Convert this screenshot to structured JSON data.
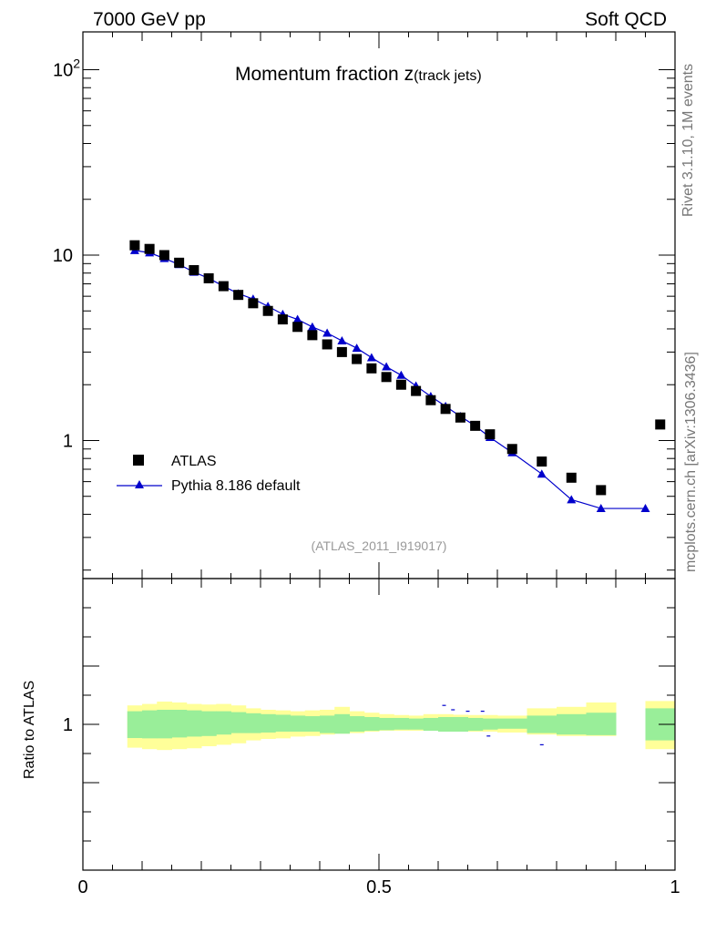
{
  "header": {
    "beam": "7000 GeV pp",
    "process": "Soft QCD"
  },
  "side_labels": {
    "rivet": "Rivet 3.1.10,  1M events",
    "source": "mcplots.cern.ch [arXiv:1306.3436]"
  },
  "chart_data": {
    "type": "scatter",
    "title_main": "Momentum fraction z",
    "title_sub": "(track jets)",
    "analysis_id": "(ATLAS_2011_I919017)",
    "xlim": [
      0,
      1
    ],
    "main_ylim": [
      0.18,
      160
    ],
    "main_yscale": "log",
    "x_tick_labels": [
      "0",
      "0.5",
      "1"
    ],
    "main_y_tick_labels": [
      {
        "value": 1,
        "label": "1"
      },
      {
        "value": 10,
        "label": "10"
      },
      {
        "value": 100,
        "label": "10",
        "sup": "2"
      }
    ],
    "ratio_ylabel": "Ratio to ATLAS",
    "ratio_ylim": [
      0.5,
      1.5
    ],
    "ratio_y_tick_labels": [
      {
        "value": 1,
        "label": "1"
      }
    ],
    "legend_position": "bottom-left",
    "series": [
      {
        "name": "ATLAS",
        "marker": "square",
        "color": "#000000",
        "x": [
          0.0875,
          0.1125,
          0.1375,
          0.1625,
          0.1875,
          0.2125,
          0.2375,
          0.2625,
          0.2875,
          0.3125,
          0.3375,
          0.3625,
          0.3875,
          0.4125,
          0.4375,
          0.4625,
          0.4875,
          0.5125,
          0.5375,
          0.5625,
          0.5875,
          0.6125,
          0.6375,
          0.6625,
          0.6875,
          0.725,
          0.775,
          0.825,
          0.875,
          0.975
        ],
        "y": [
          11.3,
          10.8,
          10.0,
          9.1,
          8.3,
          7.5,
          6.8,
          6.1,
          5.5,
          5.0,
          4.5,
          4.1,
          3.7,
          3.3,
          3.0,
          2.75,
          2.45,
          2.2,
          2.0,
          1.85,
          1.65,
          1.48,
          1.33,
          1.2,
          1.08,
          0.9,
          0.77,
          0.63,
          0.54,
          1.22
        ]
      },
      {
        "name": "Pythia 8.186 default",
        "marker": "triangle",
        "color": "#0000cc",
        "x": [
          0.0875,
          0.1125,
          0.1375,
          0.1625,
          0.1875,
          0.2125,
          0.2375,
          0.2625,
          0.2875,
          0.3125,
          0.3375,
          0.3625,
          0.3875,
          0.4125,
          0.4375,
          0.4625,
          0.4875,
          0.5125,
          0.5375,
          0.5625,
          0.5875,
          0.6125,
          0.6375,
          0.6625,
          0.6875,
          0.725,
          0.775,
          0.825,
          0.875,
          0.95
        ],
        "y": [
          10.6,
          10.3,
          9.6,
          8.9,
          8.1,
          7.5,
          6.8,
          6.2,
          5.8,
          5.3,
          4.8,
          4.5,
          4.1,
          3.8,
          3.45,
          3.15,
          2.8,
          2.5,
          2.25,
          1.97,
          1.73,
          1.53,
          1.35,
          1.2,
          1.04,
          0.86,
          0.66,
          0.48,
          0.43,
          0.43
        ]
      }
    ],
    "ratio_bands": {
      "edges": [
        0.075,
        0.1,
        0.125,
        0.15,
        0.175,
        0.2,
        0.225,
        0.25,
        0.275,
        0.3,
        0.325,
        0.35,
        0.375,
        0.4,
        0.425,
        0.45,
        0.475,
        0.5,
        0.525,
        0.55,
        0.575,
        0.6,
        0.625,
        0.65,
        0.675,
        0.7,
        0.75,
        0.8,
        0.85,
        0.9,
        0.95,
        1.0
      ],
      "stat_lo": [
        0.953,
        0.952,
        0.952,
        0.955,
        0.958,
        0.96,
        0.965,
        0.97,
        0.97,
        0.972,
        0.975,
        0.975,
        0.975,
        0.97,
        0.968,
        0.975,
        0.978,
        0.98,
        0.982,
        0.982,
        0.978,
        0.975,
        0.975,
        0.978,
        0.982,
        0.985,
        0.97,
        0.965,
        0.963,
        null,
        0.945
      ],
      "stat_hi": [
        1.045,
        1.048,
        1.05,
        1.05,
        1.048,
        1.045,
        1.045,
        1.042,
        1.038,
        1.035,
        1.033,
        1.03,
        1.028,
        1.03,
        1.035,
        1.028,
        1.025,
        1.022,
        1.022,
        1.02,
        1.022,
        1.025,
        1.025,
        1.022,
        1.02,
        1.02,
        1.03,
        1.035,
        1.04,
        null,
        1.055
      ],
      "total_lo": [
        0.92,
        0.915,
        0.912,
        0.915,
        0.918,
        0.925,
        0.93,
        0.935,
        0.945,
        0.95,
        0.952,
        0.958,
        0.96,
        0.965,
        0.968,
        0.97,
        0.975,
        0.978,
        0.978,
        0.978,
        0.978,
        0.975,
        0.975,
        0.975,
        0.975,
        0.972,
        0.965,
        0.96,
        0.96,
        null,
        0.915
      ],
      "total_hi": [
        1.065,
        1.07,
        1.078,
        1.075,
        1.07,
        1.068,
        1.07,
        1.065,
        1.055,
        1.05,
        1.048,
        1.045,
        1.048,
        1.05,
        1.06,
        1.045,
        1.04,
        1.035,
        1.032,
        1.03,
        1.035,
        1.035,
        1.033,
        1.032,
        1.032,
        1.03,
        1.055,
        1.06,
        1.075,
        null,
        1.08
      ],
      "stat_color": "#99ee99",
      "total_color": "#ffff99"
    },
    "ratio_mc_marks": [
      {
        "x": 0.61,
        "y": 1.065
      },
      {
        "x": 0.625,
        "y": 1.05
      },
      {
        "x": 0.65,
        "y": 1.045
      },
      {
        "x": 0.675,
        "y": 1.045
      },
      {
        "x": 0.685,
        "y": 0.96
      },
      {
        "x": 0.775,
        "y": 0.93
      }
    ]
  }
}
